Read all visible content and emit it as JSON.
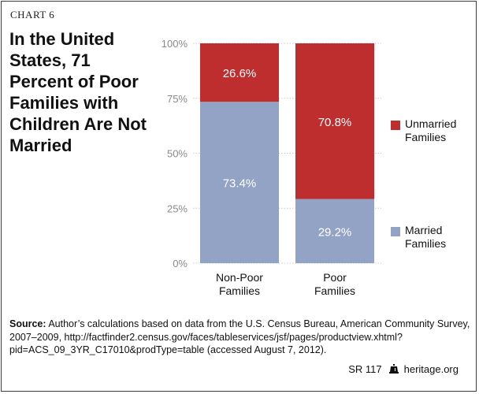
{
  "header": {
    "chart_label": "CHART 6",
    "title": "In the United States, 71 Percent of Poor Families with Children Are Not Married"
  },
  "colors": {
    "married": "#93a3c6",
    "unmarried": "#bf2e2f",
    "axis_text": "#8a8a8a"
  },
  "chart_data": {
    "type": "bar",
    "stacked": true,
    "categories": [
      "Non-Poor Families",
      "Poor Families"
    ],
    "category_lines": [
      [
        "Non-Poor",
        "Families"
      ],
      [
        "Poor",
        "Families"
      ]
    ],
    "series": [
      {
        "name": "Married Families",
        "values": [
          73.4,
          29.2
        ],
        "labels": [
          "73.4%",
          "29.2%"
        ]
      },
      {
        "name": "Unmarried Families",
        "values": [
          26.6,
          70.8
        ],
        "labels": [
          "26.6%",
          "70.8%"
        ]
      }
    ],
    "ylim": [
      0,
      100
    ],
    "yticks": [
      0,
      25,
      50,
      75,
      100
    ],
    "ytick_labels": [
      "0%",
      "25%",
      "50%",
      "75%",
      "100%"
    ],
    "legend_position": "right"
  },
  "legend": {
    "items": [
      {
        "key": "unmarried",
        "lines": [
          "Unmarried",
          "Families"
        ]
      },
      {
        "key": "married",
        "lines": [
          "Married",
          "Families"
        ]
      }
    ]
  },
  "source": {
    "label": "Source:",
    "text": "Author’s calculations based on data from the U.S. Census Bureau, American Community Survey, 2007–2009, http://factfinder2.census.gov/faces/tableservices/jsf/pages/productview.xhtml?pid=ACS_09_3YR_C17010&prodType=table (accessed August 7, 2012)."
  },
  "footer": {
    "report_id": "SR 117",
    "site": "heritage.org",
    "icon": "liberty-bell-icon"
  }
}
